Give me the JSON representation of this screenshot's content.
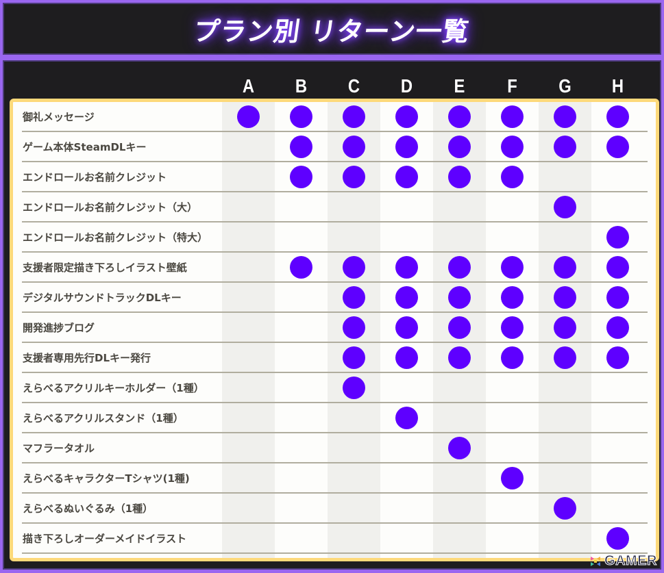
{
  "header": {
    "title": "プラン別 リターン一覧"
  },
  "table": {
    "columns": [
      "A",
      "B",
      "C",
      "D",
      "E",
      "F",
      "G",
      "H"
    ],
    "shaded_columns": [
      "A",
      "C",
      "E",
      "G"
    ],
    "rows": [
      {
        "label": "御礼メッセージ",
        "included": [
          1,
          1,
          1,
          1,
          1,
          1,
          1,
          1
        ]
      },
      {
        "label": "ゲーム本体SteamDLキー",
        "included": [
          0,
          1,
          1,
          1,
          1,
          1,
          1,
          1
        ]
      },
      {
        "label": "エンドロールお名前クレジット",
        "included": [
          0,
          1,
          1,
          1,
          1,
          1,
          0,
          0
        ]
      },
      {
        "label": "エンドロールお名前クレジット（大）",
        "included": [
          0,
          0,
          0,
          0,
          0,
          0,
          1,
          0
        ]
      },
      {
        "label": "エンドロールお名前クレジット（特大）",
        "included": [
          0,
          0,
          0,
          0,
          0,
          0,
          0,
          1
        ]
      },
      {
        "label": "支援者限定描き下ろしイラスト壁紙",
        "included": [
          0,
          1,
          1,
          1,
          1,
          1,
          1,
          1
        ]
      },
      {
        "label": "デジタルサウンドトラックDLキー",
        "included": [
          0,
          0,
          1,
          1,
          1,
          1,
          1,
          1
        ]
      },
      {
        "label": "開発進捗ブログ",
        "included": [
          0,
          0,
          1,
          1,
          1,
          1,
          1,
          1
        ]
      },
      {
        "label": "支援者専用先行DLキー発行",
        "included": [
          0,
          0,
          1,
          1,
          1,
          1,
          1,
          1
        ]
      },
      {
        "label": "えらべるアクリルキーホルダー（1種）",
        "included": [
          0,
          0,
          1,
          0,
          0,
          0,
          0,
          0
        ]
      },
      {
        "label": "えらべるアクリルスタンド（1種）",
        "included": [
          0,
          0,
          0,
          1,
          0,
          0,
          0,
          0
        ]
      },
      {
        "label": "マフラータオル",
        "included": [
          0,
          0,
          0,
          0,
          1,
          0,
          0,
          0
        ]
      },
      {
        "label": "えらべるキャラクターTシャツ(1種)",
        "included": [
          0,
          0,
          0,
          0,
          0,
          1,
          0,
          0
        ]
      },
      {
        "label": "えらべるぬいぐるみ（1種）",
        "included": [
          0,
          0,
          0,
          0,
          0,
          0,
          1,
          0
        ]
      },
      {
        "label": "描き下ろしオーダーメイドイラスト",
        "included": [
          0,
          0,
          0,
          0,
          0,
          0,
          0,
          1
        ]
      }
    ]
  },
  "watermark": {
    "text": "GAMER",
    "icon": "gamer-logo-icon"
  },
  "colors": {
    "accent_dot": "#5e00ff",
    "frame_purple": "#9a66f0",
    "panel_dark": "#1e1d1f",
    "card_border": "#fdd97a",
    "shade": "#f0f0ed",
    "divider": "#b0ad9e",
    "label_text": "#4a4740"
  }
}
